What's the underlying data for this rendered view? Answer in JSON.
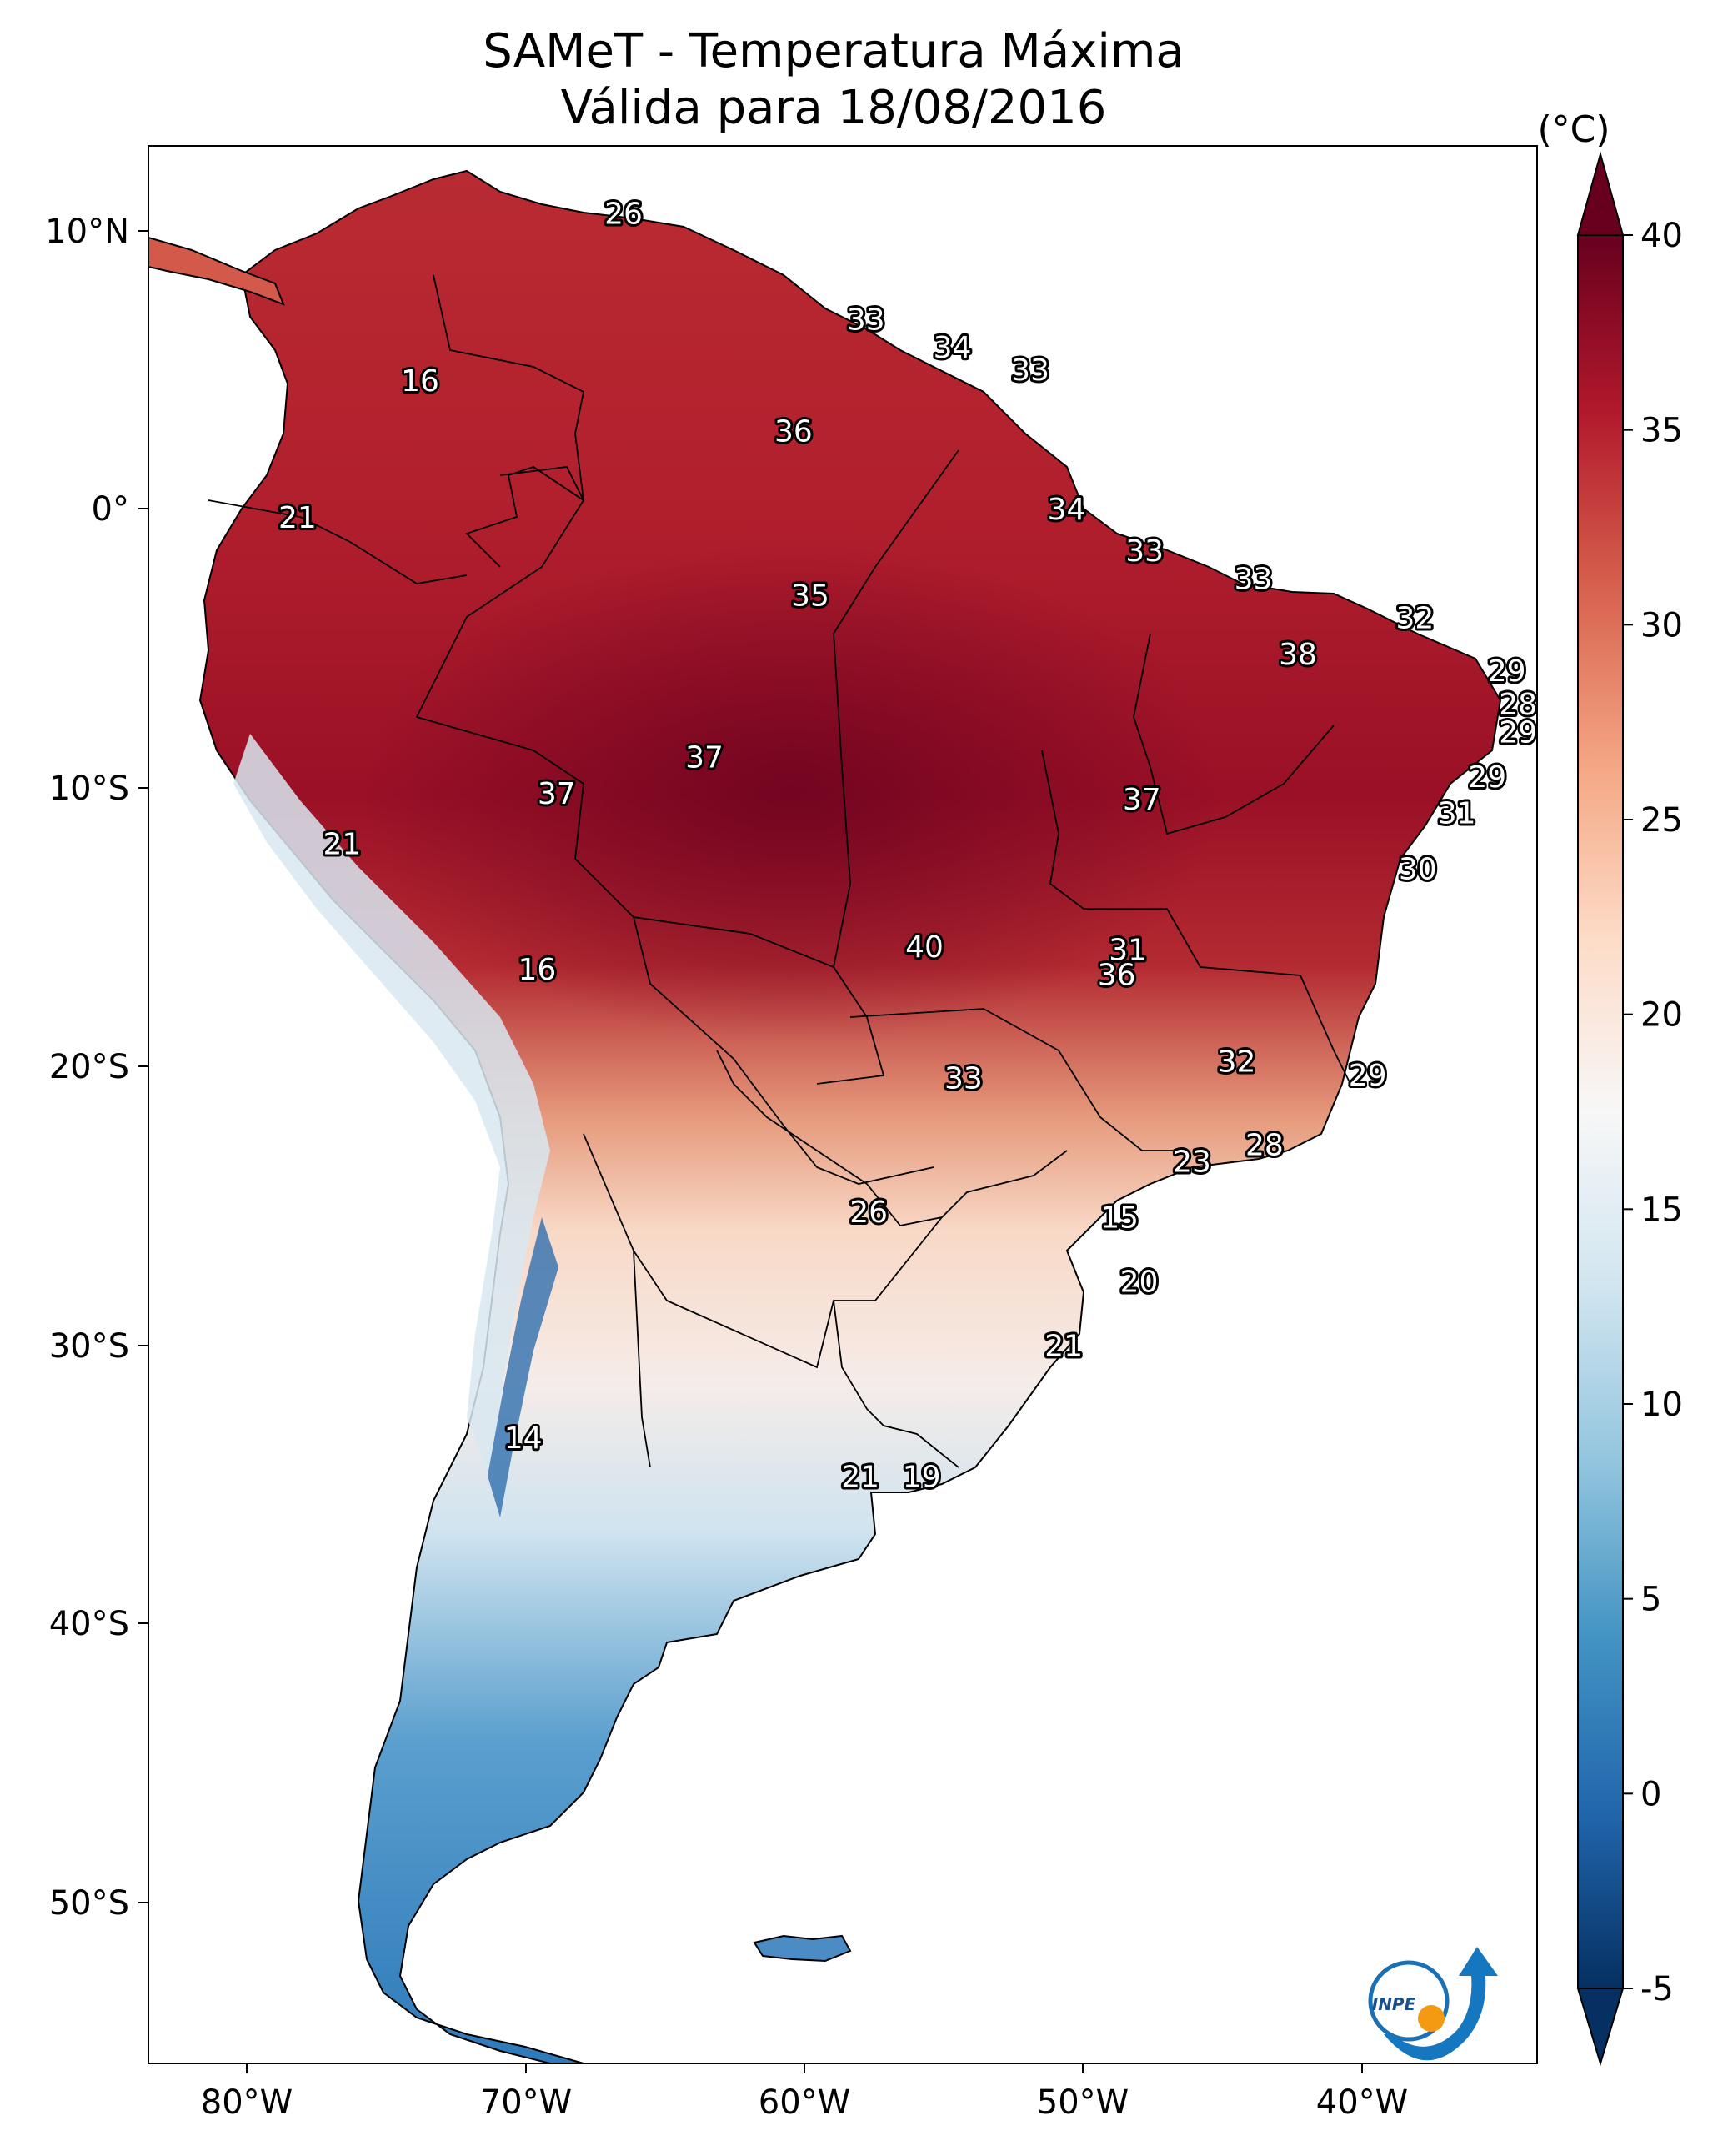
{
  "map": {
    "title_line1": "SAMeT - Temperatura Máxima",
    "title_line2": "Válida para 18/08/2016",
    "lat_ticks": [
      "10°N",
      "0°",
      "10°S",
      "20°S",
      "30°S",
      "40°S",
      "50°S"
    ],
    "lon_ticks": [
      "80°W",
      "70°W",
      "60°W",
      "50°W",
      "40°W"
    ],
    "labels": [
      {
        "t": "26",
        "lon": -66.5,
        "lat": 10.6
      },
      {
        "t": "16",
        "lon": -73.8,
        "lat": 4.6
      },
      {
        "t": "33",
        "lon": -57.8,
        "lat": 6.8
      },
      {
        "t": "34",
        "lon": -54.7,
        "lat": 5.8
      },
      {
        "t": "33",
        "lon": -51.9,
        "lat": 5.0
      },
      {
        "t": "36",
        "lon": -60.4,
        "lat": 2.8
      },
      {
        "t": "21",
        "lon": -78.2,
        "lat": -0.3
      },
      {
        "t": "34",
        "lon": -50.6,
        "lat": 0.0
      },
      {
        "t": "33",
        "lon": -47.8,
        "lat": -1.5
      },
      {
        "t": "33",
        "lon": -43.9,
        "lat": -2.5
      },
      {
        "t": "35",
        "lon": -59.8,
        "lat": -3.1
      },
      {
        "t": "32",
        "lon": -38.1,
        "lat": -3.9
      },
      {
        "t": "38",
        "lon": -42.3,
        "lat": -5.2
      },
      {
        "t": "29",
        "lon": -34.8,
        "lat": -5.8
      },
      {
        "t": "28",
        "lon": -34.4,
        "lat": -7.0
      },
      {
        "t": "29",
        "lon": -34.4,
        "lat": -8.0
      },
      {
        "t": "37",
        "lon": -63.6,
        "lat": -8.9
      },
      {
        "t": "37",
        "lon": -68.9,
        "lat": -10.2
      },
      {
        "t": "37",
        "lon": -47.9,
        "lat": -10.4
      },
      {
        "t": "29",
        "lon": -35.5,
        "lat": -9.6
      },
      {
        "t": "31",
        "lon": -36.6,
        "lat": -10.9
      },
      {
        "t": "21",
        "lon": -76.6,
        "lat": -12.0
      },
      {
        "t": "30",
        "lon": -38.0,
        "lat": -12.9
      },
      {
        "t": "31",
        "lon": -48.4,
        "lat": -15.8
      },
      {
        "t": "40",
        "lon": -55.7,
        "lat": -15.7
      },
      {
        "t": "36",
        "lon": -48.8,
        "lat": -16.7
      },
      {
        "t": "16",
        "lon": -69.6,
        "lat": -16.5
      },
      {
        "t": "32",
        "lon": -44.5,
        "lat": -19.8
      },
      {
        "t": "29",
        "lon": -39.8,
        "lat": -20.3
      },
      {
        "t": "33",
        "lon": -54.3,
        "lat": -20.4
      },
      {
        "t": "28",
        "lon": -43.5,
        "lat": -22.8
      },
      {
        "t": "23",
        "lon": -46.1,
        "lat": -23.4
      },
      {
        "t": "26",
        "lon": -57.7,
        "lat": -25.2
      },
      {
        "t": "15",
        "lon": -48.7,
        "lat": -25.4
      },
      {
        "t": "20",
        "lon": -48.0,
        "lat": -27.7
      },
      {
        "t": "21",
        "lon": -50.7,
        "lat": -30.0
      },
      {
        "t": "14",
        "lon": -70.1,
        "lat": -33.3
      },
      {
        "t": "21",
        "lon": -58.0,
        "lat": -34.7
      },
      {
        "t": "19",
        "lon": -55.8,
        "lat": -34.7
      }
    ]
  },
  "colorbar": {
    "unit": "(°C)",
    "tick_values": [
      40,
      35,
      30,
      25,
      20,
      15,
      10,
      5,
      0,
      -5
    ],
    "tick_labels": [
      "40",
      "35",
      "30",
      "25",
      "20",
      "15",
      "10",
      "5",
      "0",
      "-5"
    ],
    "range": [
      -5,
      40
    ],
    "colors": [
      "#053061",
      "#2166ac",
      "#4393c3",
      "#92c5de",
      "#d1e5f0",
      "#f7f7f7",
      "#fddbc7",
      "#f4a582",
      "#d6604d",
      "#b2182b",
      "#67001f"
    ]
  },
  "logo": {
    "text": "INPE"
  }
}
